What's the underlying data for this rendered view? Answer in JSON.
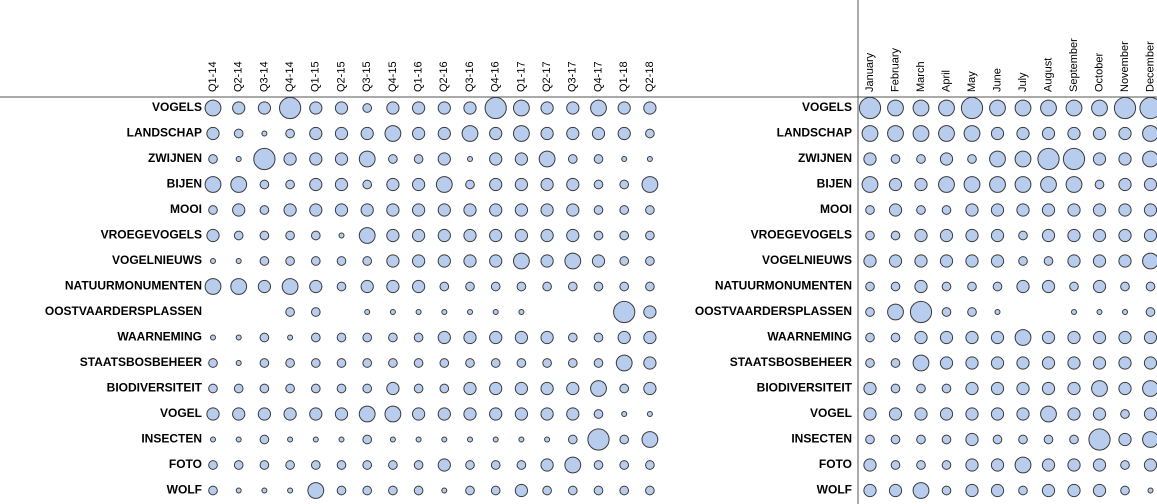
{
  "chart_data": [
    {
      "type": "bubble-grid",
      "columns": [
        "Q1-14",
        "Q2-14",
        "Q3-14",
        "Q4-14",
        "Q1-15",
        "Q2-15",
        "Q3-15",
        "Q4-15",
        "Q1-16",
        "Q2-16",
        "Q3-16",
        "Q4-16",
        "Q1-17",
        "Q2-17",
        "Q3-17",
        "Q4-17",
        "Q1-18",
        "Q2-18"
      ],
      "rows": [
        "VOGELS",
        "LANDSCHAP",
        "ZWIJNEN",
        "BIJEN",
        "MOOI",
        "VROEGEVOGELS",
        "VOGELNIEUWS",
        "NATUURMONUMENTEN",
        "OOSTVAARDERSPLASSEN",
        "WAARNEMING",
        "STAATSBOSBEHEER",
        "BIODIVERSITEIT",
        "VOGEL",
        "INSECTEN",
        "FOTO",
        "WOLF"
      ],
      "color": "#b8cdee",
      "values": [
        [
          10,
          6,
          6,
          18,
          6,
          6,
          3,
          6,
          6,
          6,
          6,
          18,
          10,
          6,
          6,
          10,
          6,
          6
        ],
        [
          6,
          3,
          1,
          3,
          6,
          6,
          6,
          10,
          6,
          6,
          10,
          6,
          10,
          6,
          6,
          6,
          6,
          3
        ],
        [
          3,
          1,
          18,
          6,
          6,
          6,
          10,
          3,
          3,
          6,
          1,
          6,
          6,
          10,
          3,
          3,
          1,
          1
        ],
        [
          10,
          10,
          3,
          3,
          6,
          6,
          3,
          6,
          6,
          10,
          3,
          6,
          6,
          6,
          6,
          3,
          3,
          10
        ],
        [
          3,
          6,
          3,
          6,
          6,
          6,
          6,
          6,
          6,
          6,
          6,
          6,
          6,
          6,
          6,
          3,
          3,
          3
        ],
        [
          6,
          3,
          3,
          3,
          3,
          1,
          10,
          6,
          6,
          6,
          6,
          6,
          6,
          6,
          6,
          3,
          3,
          3
        ],
        [
          1,
          1,
          3,
          3,
          3,
          3,
          3,
          6,
          6,
          6,
          6,
          6,
          10,
          6,
          10,
          6,
          3,
          3
        ],
        [
          10,
          10,
          6,
          10,
          6,
          3,
          6,
          6,
          6,
          3,
          3,
          3,
          3,
          3,
          3,
          3,
          3,
          3
        ],
        [
          null,
          null,
          null,
          3,
          3,
          null,
          1,
          1,
          1,
          1,
          1,
          1,
          1,
          null,
          null,
          null,
          18,
          6
        ],
        [
          1,
          1,
          3,
          1,
          3,
          3,
          3,
          3,
          3,
          6,
          6,
          6,
          6,
          6,
          3,
          3,
          6,
          6
        ],
        [
          3,
          1,
          3,
          3,
          3,
          3,
          3,
          3,
          3,
          3,
          3,
          3,
          3,
          3,
          3,
          3,
          10,
          6
        ],
        [
          3,
          3,
          3,
          3,
          3,
          3,
          3,
          6,
          3,
          3,
          6,
          6,
          6,
          6,
          6,
          10,
          3,
          6
        ],
        [
          6,
          6,
          6,
          6,
          6,
          6,
          10,
          10,
          6,
          6,
          6,
          6,
          6,
          6,
          6,
          3,
          1,
          1
        ],
        [
          1,
          1,
          3,
          1,
          1,
          1,
          3,
          1,
          1,
          1,
          1,
          1,
          1,
          1,
          3,
          18,
          3,
          10
        ],
        [
          3,
          3,
          3,
          3,
          3,
          3,
          3,
          3,
          3,
          6,
          3,
          3,
          3,
          6,
          10,
          3,
          3,
          3
        ],
        [
          3,
          1,
          1,
          1,
          10,
          3,
          3,
          3,
          3,
          1,
          3,
          3,
          6,
          3,
          3,
          3,
          3,
          3
        ]
      ]
    },
    {
      "type": "bubble-grid",
      "columns": [
        "January",
        "February",
        "March",
        "April",
        "May",
        "June",
        "July",
        "August",
        "September",
        "October",
        "November",
        "December"
      ],
      "rows": [
        "VOGELS",
        "LANDSCHAP",
        "ZWIJNEN",
        "BIJEN",
        "MOOI",
        "VROEGEVOGELS",
        "VOGELNIEUWS",
        "NATUURMONUMENTEN",
        "OOSTVAARDERSPLASSEN",
        "WAARNEMING",
        "STAATSBOSBEHEER",
        "BIODIVERSITEIT",
        "VOGEL",
        "INSECTEN",
        "FOTO",
        "WOLF"
      ],
      "color": "#b8cdee",
      "values": [
        [
          18,
          10,
          10,
          10,
          18,
          10,
          10,
          10,
          10,
          10,
          18,
          18
        ],
        [
          10,
          10,
          10,
          10,
          10,
          6,
          6,
          6,
          6,
          6,
          6,
          10
        ],
        [
          6,
          3,
          3,
          6,
          3,
          10,
          10,
          18,
          18,
          6,
          6,
          10
        ],
        [
          10,
          6,
          6,
          10,
          10,
          10,
          10,
          10,
          10,
          3,
          6,
          6
        ],
        [
          3,
          6,
          3,
          3,
          6,
          6,
          6,
          6,
          6,
          6,
          6,
          6
        ],
        [
          3,
          3,
          6,
          6,
          6,
          6,
          3,
          6,
          6,
          6,
          6,
          6
        ],
        [
          6,
          6,
          6,
          6,
          6,
          6,
          3,
          3,
          6,
          6,
          6,
          10
        ],
        [
          3,
          3,
          6,
          3,
          3,
          3,
          6,
          6,
          3,
          6,
          3,
          3
        ],
        [
          3,
          10,
          18,
          3,
          3,
          1,
          null,
          null,
          1,
          1,
          1,
          3
        ],
        [
          3,
          3,
          6,
          6,
          6,
          6,
          10,
          6,
          6,
          6,
          6,
          6
        ],
        [
          3,
          3,
          10,
          6,
          6,
          6,
          6,
          6,
          6,
          6,
          6,
          6
        ],
        [
          6,
          3,
          3,
          3,
          6,
          6,
          6,
          6,
          6,
          10,
          6,
          10
        ],
        [
          6,
          6,
          6,
          6,
          6,
          6,
          6,
          10,
          6,
          6,
          3,
          6
        ],
        [
          3,
          3,
          3,
          3,
          6,
          3,
          3,
          3,
          3,
          18,
          6,
          10
        ],
        [
          6,
          3,
          3,
          3,
          6,
          6,
          10,
          6,
          6,
          6,
          3,
          6
        ],
        [
          6,
          6,
          10,
          3,
          6,
          6,
          3,
          6,
          6,
          6,
          3,
          1
        ]
      ]
    }
  ]
}
